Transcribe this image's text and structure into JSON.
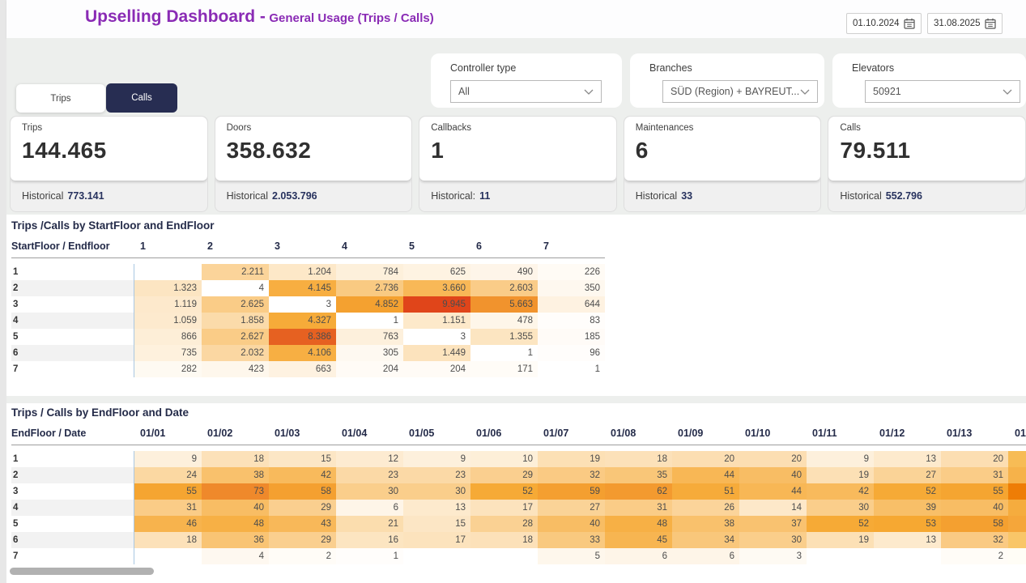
{
  "topbar": {
    "title_main": "Upselling Dashboard -",
    "title_sub": "General Usage (Trips / Calls)",
    "date_from": "01.10.2024",
    "date_to": "31.08.2025"
  },
  "filters": [
    {
      "label": "Controller type",
      "value": "All"
    },
    {
      "label": "Branches",
      "value": "SÜD (Region) + BAYREUT..."
    },
    {
      "label": "Elevators",
      "value": "50921"
    }
  ],
  "toggle": {
    "trips_label": "Trips",
    "calls_label": "Calls",
    "selected": "Calls"
  },
  "kpis": [
    {
      "title": "Trips",
      "value": "144.465",
      "historical_label": "Historical",
      "historical_value": "773.141"
    },
    {
      "title": "Doors",
      "value": "358.632",
      "historical_label": "Historical",
      "historical_value": "2.053.796"
    },
    {
      "title": "Callbacks",
      "value": "1",
      "historical_label": "Historical:",
      "historical_value": "11"
    },
    {
      "title": "Maintenances",
      "value": "6",
      "historical_label": "Historical",
      "historical_value": "33"
    },
    {
      "title": "Calls",
      "value": "79.511",
      "historical_label": "Historical",
      "historical_value": "552.796"
    }
  ],
  "chart_data": [
    {
      "type": "heatmap",
      "title": "Trips /Calls by StartFloor and EndFloor",
      "corner_label": "StartFloor / Endfloor",
      "columns": [
        "1",
        "2",
        "3",
        "4",
        "5",
        "6",
        "7"
      ],
      "rows": [
        "1",
        "2",
        "3",
        "4",
        "5",
        "6",
        "7"
      ],
      "values": [
        [
          null,
          2211,
          1204,
          784,
          625,
          490,
          226
        ],
        [
          1323,
          4,
          4145,
          2736,
          3660,
          2603,
          350
        ],
        [
          1119,
          2625,
          3,
          4852,
          9945,
          5663,
          644
        ],
        [
          1059,
          1858,
          4327,
          1,
          1151,
          478,
          83
        ],
        [
          866,
          2627,
          8386,
          763,
          3,
          1355,
          185
        ],
        [
          735,
          2032,
          4106,
          305,
          1449,
          1,
          96
        ],
        [
          282,
          423,
          663,
          204,
          204,
          171,
          1
        ]
      ],
      "heat_scale": {
        "max": 9945,
        "ramp": 1.0
      }
    },
    {
      "type": "heatmap",
      "title": "Trips / Calls by EndFloor and Date",
      "corner_label": "EndFloor / Date",
      "columns": [
        "01/01",
        "01/02",
        "01/03",
        "01/04",
        "01/05",
        "01/06",
        "01/07",
        "01/08",
        "01/09",
        "01/10",
        "01/11",
        "01/12",
        "01/13"
      ],
      "rows": [
        "1",
        "2",
        "3",
        "4",
        "5",
        "6",
        "7"
      ],
      "values": [
        [
          9,
          18,
          15,
          12,
          9,
          10,
          19,
          18,
          20,
          20,
          9,
          13,
          20
        ],
        [
          24,
          38,
          42,
          23,
          23,
          29,
          32,
          35,
          44,
          40,
          19,
          27,
          31
        ],
        [
          55,
          73,
          58,
          30,
          30,
          52,
          59,
          62,
          51,
          44,
          42,
          52,
          55
        ],
        [
          31,
          40,
          29,
          6,
          13,
          17,
          27,
          31,
          26,
          14,
          30,
          39,
          40
        ],
        [
          46,
          48,
          43,
          21,
          15,
          28,
          40,
          48,
          38,
          37,
          52,
          53,
          58
        ],
        [
          18,
          36,
          29,
          16,
          17,
          18,
          33,
          45,
          34,
          30,
          19,
          13,
          32
        ],
        [
          null,
          4,
          2,
          1,
          null,
          null,
          5,
          6,
          6,
          3,
          null,
          null,
          2
        ]
      ],
      "heat_scale": {
        "max": 73,
        "ramp": 0.62
      },
      "clipped_column": {
        "label": "01/",
        "cell_colors": [
          "#f7bc55",
          "#f6b24a",
          "#ee7d06",
          "#f5ac3e",
          "#f5a63a",
          "#f9c668",
          "#fffdf6"
        ]
      }
    }
  ],
  "colors": {
    "accent_purple": "#8a2bb5",
    "navy": "#272d52",
    "heat_low": "#ffffff",
    "heat_mid": "#f6a832",
    "heat_high": "#e0451a"
  }
}
